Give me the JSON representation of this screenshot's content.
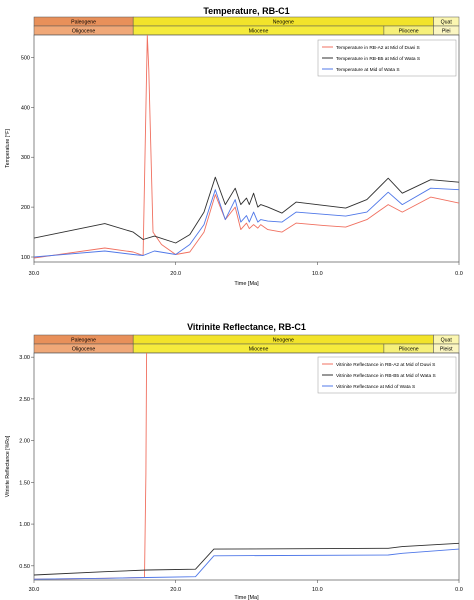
{
  "colors": {
    "paleogene": "#e8905a",
    "oligocene": "#f0a878",
    "neogene": "#f2e32a",
    "miocene": "#f5eb3c",
    "pliocene": "#f6f07a",
    "quat": "#fbf6b0",
    "pleist": "#fbf6c2",
    "red_series": "#f07060",
    "black_series": "#303030",
    "blue_series": "#5078e8"
  },
  "chart_data": [
    {
      "type": "line",
      "title": "Temperature, RB-C1",
      "xlabel": "Time [Ma]",
      "ylabel": "Temperature [°F]",
      "xlim": [
        30.0,
        0.0
      ],
      "ylim": [
        90,
        545
      ],
      "xticks": [
        "30.0",
        "20.0",
        "10.0",
        "0.0"
      ],
      "yticks": [
        "100",
        "200",
        "300",
        "400",
        "500"
      ],
      "timescale_upper": [
        {
          "label": "Paleogene",
          "start": 30.0,
          "end": 23.0,
          "color_key": "paleogene"
        },
        {
          "label": "Neogene",
          "start": 23.0,
          "end": 1.8,
          "color_key": "neogene"
        },
        {
          "label": "Quat",
          "start": 1.8,
          "end": 0.0,
          "color_key": "quat"
        }
      ],
      "timescale_lower": [
        {
          "label": "Oligocene",
          "start": 30.0,
          "end": 23.0,
          "color_key": "oligocene"
        },
        {
          "label": "Miocene",
          "start": 23.0,
          "end": 5.3,
          "color_key": "miocene"
        },
        {
          "label": "Pliocene",
          "start": 5.3,
          "end": 1.8,
          "color_key": "pliocene"
        },
        {
          "label": "Plei",
          "start": 1.8,
          "end": 0.0,
          "color_key": "pleist"
        }
      ],
      "legend": "top-right",
      "series": [
        {
          "name": "Temperature in RB-A2 at Mid of Duwi S",
          "color_key": "red_series",
          "x": [
            30.0,
            25.0,
            23.0,
            22.3,
            22.0,
            21.9,
            21.6,
            21.0,
            20.0,
            19.0,
            18.0,
            17.2,
            16.5,
            15.8,
            15.4,
            15.0,
            14.8,
            14.5,
            14.2,
            14.0,
            13.5,
            12.5,
            11.5,
            9.5,
            8.0,
            6.5,
            5.0,
            4.0,
            2.0,
            0.0
          ],
          "y": [
            98,
            118,
            110,
            103,
            545,
            475,
            150,
            125,
            105,
            110,
            150,
            225,
            175,
            200,
            155,
            168,
            157,
            165,
            158,
            165,
            155,
            150,
            168,
            163,
            160,
            175,
            205,
            190,
            220,
            208
          ]
        },
        {
          "name": "Temperature in RB-B5 at Mid of Wata S",
          "color_key": "black_series",
          "x": [
            30.0,
            25.0,
            23.0,
            22.3,
            21.5,
            20.0,
            19.0,
            18.0,
            17.2,
            16.5,
            15.8,
            15.4,
            15.0,
            14.8,
            14.5,
            14.2,
            14.0,
            13.5,
            12.5,
            11.5,
            8.0,
            6.5,
            5.0,
            4.0,
            2.0,
            0.0
          ],
          "y": [
            138,
            167,
            150,
            135,
            142,
            128,
            145,
            190,
            260,
            205,
            238,
            205,
            218,
            205,
            228,
            200,
            205,
            200,
            188,
            210,
            198,
            215,
            258,
            228,
            255,
            250
          ]
        },
        {
          "name": "Temperature at Mid of Wata S",
          "color_key": "blue_series",
          "x": [
            30.0,
            25.0,
            23.0,
            22.3,
            21.5,
            20.0,
            19.0,
            18.0,
            17.2,
            16.5,
            15.8,
            15.4,
            15.0,
            14.8,
            14.5,
            14.2,
            14.0,
            13.5,
            12.5,
            11.5,
            8.0,
            6.5,
            5.0,
            4.0,
            2.0,
            0.0
          ],
          "y": [
            100,
            112,
            105,
            103,
            112,
            105,
            125,
            165,
            235,
            175,
            215,
            170,
            183,
            170,
            190,
            170,
            175,
            172,
            170,
            190,
            182,
            190,
            230,
            205,
            238,
            235
          ]
        }
      ]
    },
    {
      "type": "line",
      "title": "Vitrinite Reflectance, RB-C1",
      "xlabel": "Time [Ma]",
      "ylabel": "Vitrinite Reflectance [%Ro]",
      "xlim": [
        30.0,
        0.0
      ],
      "ylim": [
        0.33,
        3.05
      ],
      "xticks": [
        "30.0",
        "20.0",
        "10.0",
        "0.0"
      ],
      "yticks": [
        "0.50",
        "1.00",
        "1.50",
        "2.00",
        "2.50",
        "3.00"
      ],
      "timescale_upper": [
        {
          "label": "Paleogene",
          "start": 30.0,
          "end": 23.0,
          "color_key": "paleogene"
        },
        {
          "label": "Neogene",
          "start": 23.0,
          "end": 1.8,
          "color_key": "neogene"
        },
        {
          "label": "Quat",
          "start": 1.8,
          "end": 0.0,
          "color_key": "quat"
        }
      ],
      "timescale_lower": [
        {
          "label": "Oligocene",
          "start": 30.0,
          "end": 23.0,
          "color_key": "oligocene"
        },
        {
          "label": "Miocene",
          "start": 23.0,
          "end": 5.3,
          "color_key": "miocene"
        },
        {
          "label": "Pliocene",
          "start": 5.3,
          "end": 1.8,
          "color_key": "pliocene"
        },
        {
          "label": "Pleist",
          "start": 1.8,
          "end": 0.0,
          "color_key": "pleist"
        }
      ],
      "legend": "top-right",
      "series": [
        {
          "name": "Vitrinite Reflectance in RB-A2 at Mid of Duwi S",
          "color_key": "red_series",
          "x": [
            30.0,
            25.0,
            22.2,
            22.1,
            22.05
          ],
          "y": [
            0.34,
            0.35,
            0.36,
            1.6,
            3.05
          ]
        },
        {
          "name": "Vitrinite Reflectance in RB-B5 at Mid of Wata S",
          "color_key": "black_series",
          "x": [
            30.0,
            25.0,
            22.0,
            18.6,
            17.3,
            5.0,
            4.0,
            0.0
          ],
          "y": [
            0.39,
            0.43,
            0.45,
            0.46,
            0.7,
            0.71,
            0.73,
            0.77
          ]
        },
        {
          "name": "Vitrinite Reflectance at Mid of Wata S",
          "color_key": "blue_series",
          "x": [
            30.0,
            25.0,
            22.0,
            18.6,
            17.3,
            5.0,
            4.0,
            0.0
          ],
          "y": [
            0.34,
            0.35,
            0.36,
            0.37,
            0.62,
            0.63,
            0.65,
            0.7
          ]
        }
      ]
    }
  ]
}
